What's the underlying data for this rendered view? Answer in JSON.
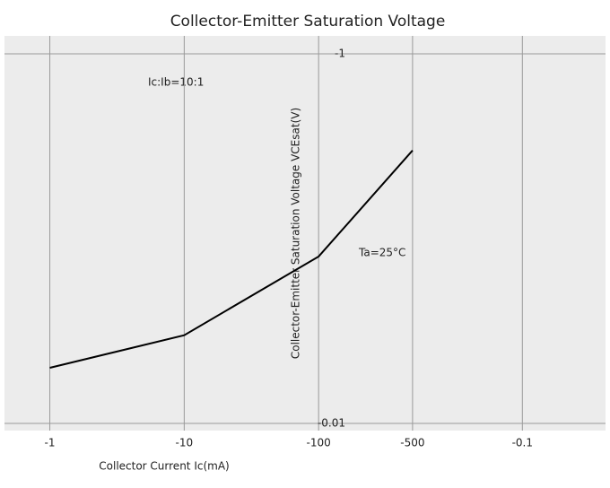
{
  "chart_data": [
    {
      "type": "line",
      "title": "Collector-Emitter Saturation Voltage",
      "x_label": "Collector Current   Ic(mA)",
      "y_label": "Collector-Emitter Saturation Voltage   VCEsat(V)",
      "annotations": [
        "Ic:Ib=10:1",
        "Ta=25°C"
      ],
      "x_log": true,
      "y_log": true,
      "grid": true,
      "xlim": [
        -0.46,
        -1000
      ],
      "xticks": [
        -1,
        -10,
        -100,
        -500
      ],
      "ylim": [
        -1,
        -0.01
      ],
      "yticks": [
        -1,
        -0.01
      ],
      "series": [
        {
          "color": "#000000",
          "x": [
            -1,
            -10,
            -100,
            -500
          ],
          "values": [
            -0.02,
            -0.03,
            -0.08,
            -0.3
          ]
        }
      ]
    },
    {
      "type": "line",
      "x_log": true,
      "grid": true,
      "xlim": [
        -0.04,
        -0.3
      ],
      "xticks": [
        -0.1
      ]
    }
  ]
}
